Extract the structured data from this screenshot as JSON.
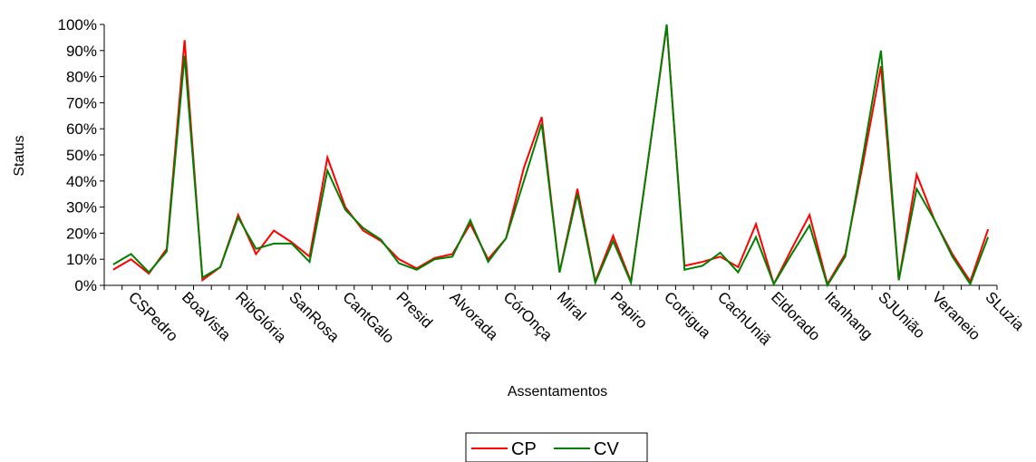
{
  "chart_data": {
    "type": "line",
    "xlabel": "Assentamentos",
    "ylabel": "Status",
    "ylim": [
      0,
      100
    ],
    "yticks": [
      "0%",
      "10%",
      "20%",
      "30%",
      "40%",
      "50%",
      "60%",
      "70%",
      "80%",
      "90%",
      "100%"
    ],
    "grid": false,
    "legend_position": "bottom",
    "tick_labels": [
      "CSPedro",
      "BoaVista",
      "RibGlória",
      "SanRosa",
      "CantGalo",
      "Presid",
      "Alvorada",
      "CórOnça",
      "Miral",
      "Papiro",
      "Cotrigua",
      "CachUniã",
      "Eldorado",
      "Itanhang",
      "SJUnião",
      "Veraneio",
      "SLuzia"
    ],
    "series": [
      {
        "name": "CP",
        "color": "#ff0000",
        "values": [
          6,
          10,
          4.5,
          14,
          94,
          2,
          7,
          27,
          12,
          21,
          16.5,
          11,
          49,
          30,
          21,
          17,
          10,
          6.5,
          10.5,
          12,
          23.5,
          10,
          18,
          45,
          64.5,
          5,
          37,
          1.5,
          19,
          1.5,
          50,
          99.5,
          7.5,
          9,
          11,
          7,
          23.5,
          0.5,
          14,
          27,
          0.5,
          12,
          47,
          84,
          2,
          42.5,
          25,
          12,
          1.5,
          21.5
        ]
      },
      {
        "name": "CV",
        "color": "#008000",
        "values": [
          8,
          12,
          5,
          13,
          88,
          3,
          7,
          26,
          14,
          16,
          16,
          9,
          44,
          29,
          22,
          17.5,
          8.5,
          6,
          10,
          11,
          25,
          9,
          18,
          40,
          62,
          5,
          35,
          1,
          17,
          1,
          50,
          100,
          6,
          7.5,
          12.5,
          5,
          18.5,
          0.5,
          12,
          23,
          0,
          11,
          50,
          90,
          2,
          37,
          25,
          11,
          0.5,
          18.5
        ]
      }
    ]
  }
}
